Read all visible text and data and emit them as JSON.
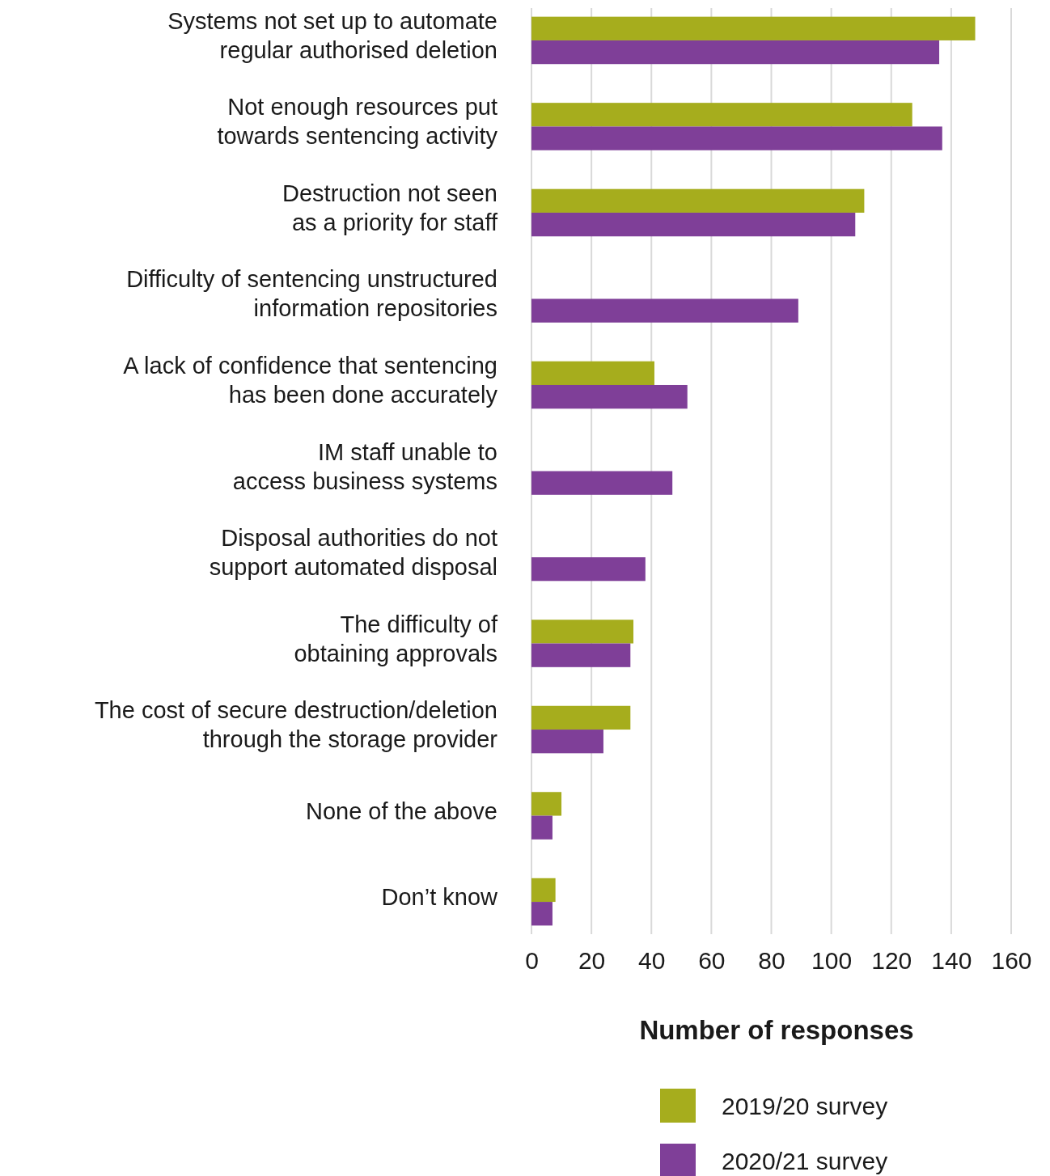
{
  "chart_data": {
    "type": "bar",
    "orientation": "horizontal",
    "categories": [
      "Systems not set up to automate\nregular authorised deletion",
      "Not enough resources put\ntowards sentencing activity",
      "Destruction not seen\nas a priority for staff",
      "Difficulty of sentencing unstructured\ninformation repositories",
      "A lack of confidence that sentencing\nhas been done accurately",
      "IM staff unable to\naccess business systems",
      "Disposal authorities do not\nsupport automated disposal",
      "The difficulty of\nobtaining approvals",
      "The cost of secure destruction/deletion\nthrough the storage provider",
      "None of the above",
      "Don’t know"
    ],
    "series": [
      {
        "name": "2019/20 survey",
        "color": "#a6ad1d",
        "values": [
          148,
          127,
          111,
          null,
          41,
          null,
          null,
          34,
          33,
          10,
          8
        ]
      },
      {
        "name": "2020/21 survey",
        "color": "#7f3f98",
        "values": [
          136,
          137,
          108,
          89,
          52,
          47,
          38,
          33,
          24,
          7,
          7
        ]
      }
    ],
    "xlabel": "Number of responses",
    "xlim": [
      0,
      160
    ],
    "xticks": [
      0,
      20,
      40,
      60,
      80,
      100,
      120,
      140,
      160
    ],
    "grid": "x",
    "legend": "bottom"
  }
}
